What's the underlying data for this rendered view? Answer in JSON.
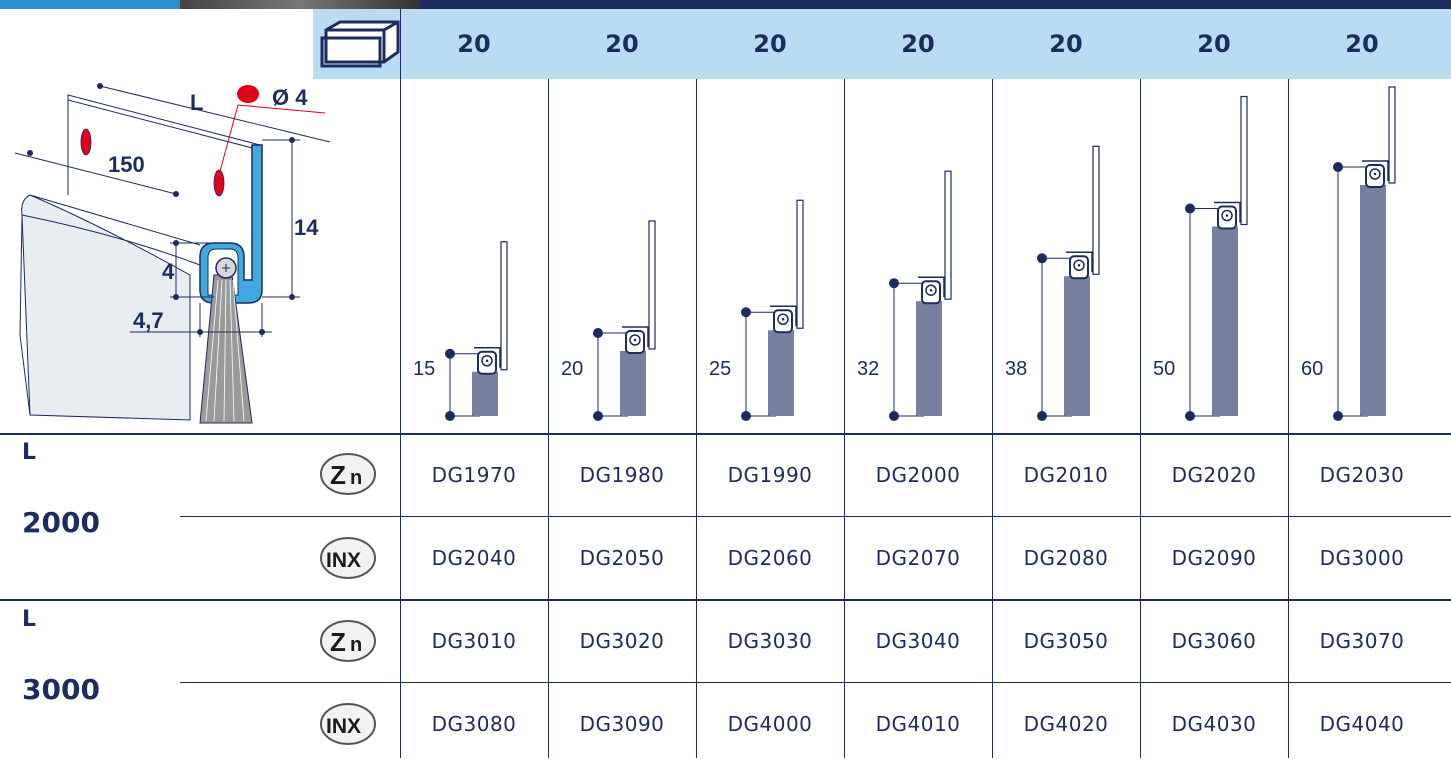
{
  "header": {
    "packaging_icon": "box-icon",
    "quantities": [
      "20",
      "20",
      "20",
      "20",
      "20",
      "20",
      "20"
    ]
  },
  "diagram": {
    "dim_L": "L",
    "dim_hole": "Ø 4",
    "dim_150": "150",
    "dim_14": "14",
    "dim_4": "4",
    "dim_4_7": "4,7"
  },
  "brush_heights": [
    "15",
    "20",
    "25",
    "32",
    "38",
    "50",
    "60"
  ],
  "groups": [
    {
      "l_label": "L",
      "length": "2000",
      "rows": [
        {
          "material_icon": "zinc-zn-icon",
          "codes": [
            "DG1970",
            "DG1980",
            "DG1990",
            "DG2000",
            "DG2010",
            "DG2020",
            "DG2030"
          ]
        },
        {
          "material_icon": "inox-inx-icon",
          "codes": [
            "DG2040",
            "DG2050",
            "DG2060",
            "DG2070",
            "DG2080",
            "DG2090",
            "DG3000"
          ]
        }
      ]
    },
    {
      "l_label": "L",
      "length": "3000",
      "rows": [
        {
          "material_icon": "zinc-zn-icon",
          "codes": [
            "DG3010",
            "DG3020",
            "DG3030",
            "DG3040",
            "DG3050",
            "DG3060",
            "DG3070"
          ]
        },
        {
          "material_icon": "inox-inx-icon",
          "codes": [
            "DG3080",
            "DG3090",
            "DG4000",
            "DG4010",
            "DG4020",
            "DG4030",
            "DG4040"
          ]
        }
      ]
    }
  ],
  "colors": {
    "navy": "#1c2c5e",
    "header_blue": "#b9dcf2",
    "profile_blue": "#3fa9e0",
    "hole_red": "#e3001b"
  }
}
